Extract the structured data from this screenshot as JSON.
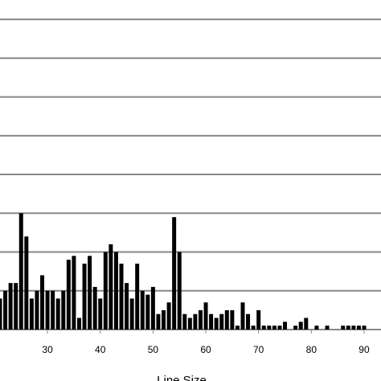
{
  "chart_data": {
    "type": "bar",
    "x_label": "Line Size",
    "color": "#000000",
    "x": [
      21,
      22,
      23,
      24,
      25,
      26,
      27,
      28,
      29,
      30,
      31,
      32,
      33,
      34,
      35,
      36,
      37,
      38,
      39,
      40,
      41,
      42,
      43,
      44,
      45,
      46,
      47,
      48,
      49,
      50,
      51,
      52,
      53,
      54,
      55,
      56,
      57,
      58,
      59,
      60,
      61,
      62,
      63,
      64,
      65,
      66,
      67,
      68,
      69,
      70,
      71,
      72,
      73,
      74,
      75,
      76,
      77,
      78,
      79,
      80,
      81,
      82,
      83,
      84,
      85,
      86,
      87,
      88,
      89,
      90
    ],
    "values": [
      0.8,
      1.0,
      1.2,
      1.2,
      3.0,
      2.4,
      0.8,
      1.0,
      1.4,
      1.0,
      1.0,
      0.8,
      1.0,
      1.8,
      1.9,
      0.3,
      1.7,
      1.9,
      1.1,
      0.8,
      2.0,
      2.2,
      2.0,
      1.7,
      1.2,
      0.8,
      1.7,
      1.0,
      0.9,
      1.1,
      0.4,
      0.5,
      0.7,
      2.9,
      2.0,
      0.4,
      0.3,
      0.4,
      0.5,
      0.7,
      0.4,
      0.3,
      0.4,
      0.5,
      0.5,
      0.1,
      0.7,
      0.4,
      0.1,
      0.5,
      0.1,
      0.1,
      0.1,
      0.1,
      0.2,
      0,
      0.1,
      0.2,
      0.3,
      0,
      0.1,
      0,
      0.1,
      0,
      0,
      0.1,
      0.1,
      0.1,
      0.1,
      0.1
    ],
    "xlim": [
      21,
      93.2
    ],
    "xticks": [
      30,
      40,
      50,
      60,
      70,
      80,
      90
    ],
    "ylim": [
      0,
      8.5
    ],
    "ygrid": [
      0,
      1,
      2,
      3,
      4,
      5,
      6,
      7,
      8
    ],
    "grid": true
  }
}
